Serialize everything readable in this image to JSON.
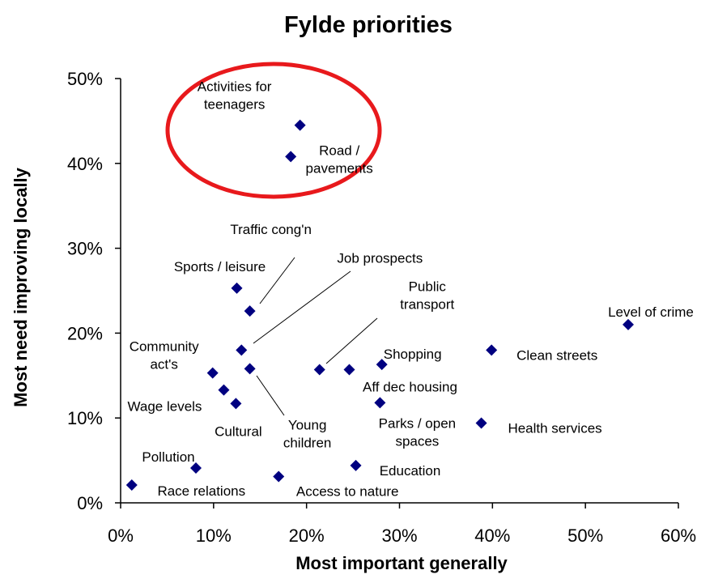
{
  "chart_data": {
    "type": "scatter",
    "title": "Fylde priorities",
    "xlabel": "Most important generally",
    "ylabel": "Most need improving locally",
    "xlim": [
      0,
      60
    ],
    "ylim": [
      0,
      50
    ],
    "x_ticks": [
      "0%",
      "10%",
      "20%",
      "30%",
      "40%",
      "50%",
      "60%"
    ],
    "y_ticks": [
      "0%",
      "10%",
      "20%",
      "30%",
      "40%",
      "50%"
    ],
    "grid": false,
    "marker_color": "#000080",
    "highlight_color": "#e8191c",
    "points": [
      {
        "label": "Activities for teenagers",
        "lines": [
          "Activities for",
          "teenagers"
        ],
        "x": 19.3,
        "y": 44.5
      },
      {
        "label": "Road / pavements",
        "lines": [
          "Road /",
          "pavements"
        ],
        "x": 18.3,
        "y": 40.8
      },
      {
        "label": "Traffic cong'n",
        "lines": [
          "Traffic cong'n"
        ],
        "x": 13.9,
        "y": 22.6
      },
      {
        "label": "Sports / leisure",
        "lines": [
          "Sports / leisure"
        ],
        "x": 12.5,
        "y": 25.3
      },
      {
        "label": "Job prospects",
        "lines": [
          "Job prospects"
        ],
        "x": 13.0,
        "y": 18.0
      },
      {
        "label": "Public transport",
        "lines": [
          "Public",
          "transport"
        ],
        "x": 21.4,
        "y": 15.7
      },
      {
        "label": "Level of crime",
        "lines": [
          "Level of crime"
        ],
        "x": 54.6,
        "y": 21.0
      },
      {
        "label": "Clean streets",
        "lines": [
          "Clean streets"
        ],
        "x": 39.9,
        "y": 18.0
      },
      {
        "label": "Shopping",
        "lines": [
          "Shopping"
        ],
        "x": 28.1,
        "y": 16.3
      },
      {
        "label": "Aff dec housing",
        "lines": [
          "Aff dec housing"
        ],
        "x": 24.6,
        "y": 15.7
      },
      {
        "label": "Community act's",
        "lines": [
          "Community",
          "act's"
        ],
        "x": 9.9,
        "y": 15.3
      },
      {
        "label": "Young children",
        "lines": [
          "Young",
          "children"
        ],
        "x": 13.9,
        "y": 15.8
      },
      {
        "label": "Wage levels",
        "lines": [
          "Wage levels"
        ],
        "x": 11.1,
        "y": 13.3
      },
      {
        "label": "Cultural",
        "lines": [
          "Cultural"
        ],
        "x": 12.4,
        "y": 11.7
      },
      {
        "label": "Parks / open spaces",
        "lines": [
          "Parks / open",
          "spaces"
        ],
        "x": 27.9,
        "y": 11.8
      },
      {
        "label": "Health services",
        "lines": [
          "Health services"
        ],
        "x": 38.8,
        "y": 9.4
      },
      {
        "label": "Pollution",
        "lines": [
          "Pollution"
        ],
        "x": 8.1,
        "y": 4.1
      },
      {
        "label": "Race relations",
        "lines": [
          "Race relations"
        ],
        "x": 1.2,
        "y": 2.1
      },
      {
        "label": "Education",
        "lines": [
          "Education"
        ],
        "x": 25.3,
        "y": 4.4
      },
      {
        "label": "Access to nature",
        "lines": [
          "Access to nature"
        ],
        "x": 17.0,
        "y": 3.1
      }
    ]
  }
}
